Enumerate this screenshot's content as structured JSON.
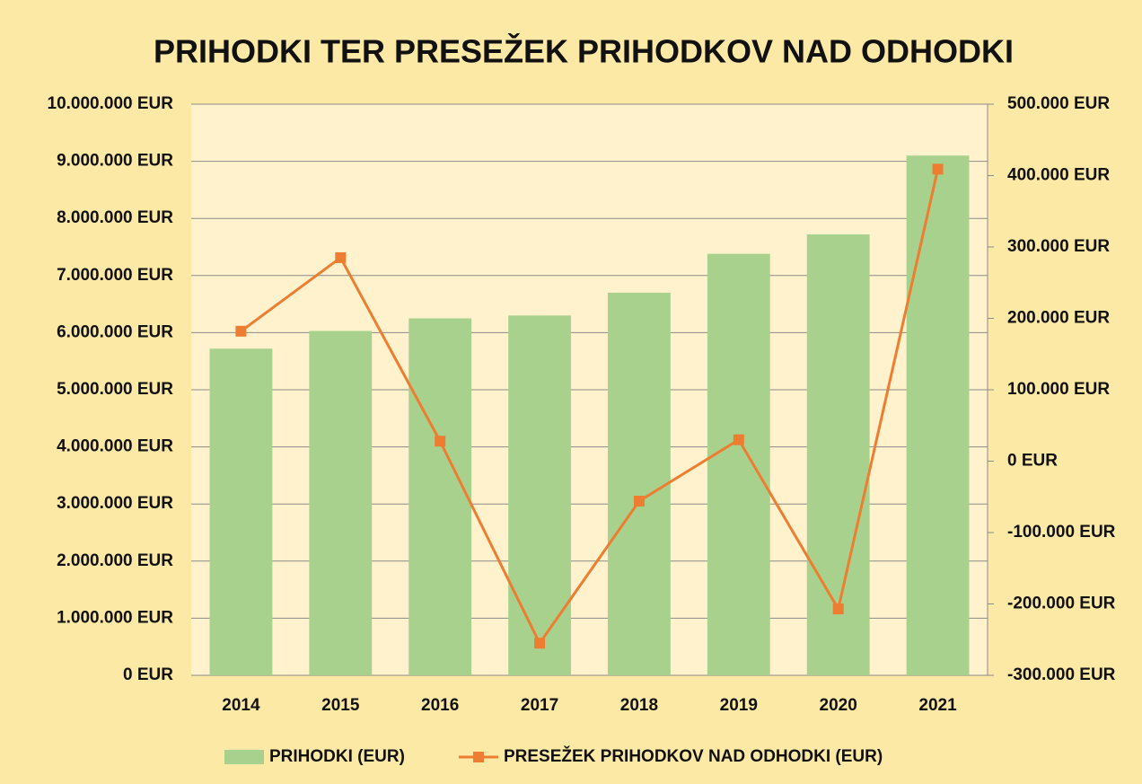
{
  "chart_data": {
    "type": "bar",
    "title": "PRIHODKI TER PRESEŽEK PRIHODKOV NAD ODHODKI",
    "categories": [
      "2014",
      "2015",
      "2016",
      "2017",
      "2018",
      "2019",
      "2020",
      "2021"
    ],
    "series": [
      {
        "name": "PRIHODKI (EUR)",
        "type": "bar",
        "color": "#a9d18e",
        "values": [
          5720000,
          6030000,
          6250000,
          6300000,
          6700000,
          7380000,
          7720000,
          9100000
        ]
      },
      {
        "name": "PRESEŽEK PRIHODKOV NAD ODHODKI (EUR)",
        "type": "line",
        "axis": "y2",
        "color": "#ed7d31",
        "values": [
          182000,
          285000,
          28000,
          -255000,
          -56000,
          30000,
          -207000,
          409000
        ]
      }
    ],
    "ylim": [
      0,
      10000000
    ],
    "yticks": [
      {
        "value": 0,
        "label": "0 EUR"
      },
      {
        "value": 1000000,
        "label": "1.000.000 EUR"
      },
      {
        "value": 2000000,
        "label": "2.000.000 EUR"
      },
      {
        "value": 3000000,
        "label": "3.000.000 EUR"
      },
      {
        "value": 4000000,
        "label": "4.000.000 EUR"
      },
      {
        "value": 5000000,
        "label": "5.000.000 EUR"
      },
      {
        "value": 6000000,
        "label": "6.000.000 EUR"
      },
      {
        "value": 7000000,
        "label": "7.000.000 EUR"
      },
      {
        "value": 8000000,
        "label": "8.000.000 EUR"
      },
      {
        "value": 9000000,
        "label": "9.000.000 EUR"
      },
      {
        "value": 10000000,
        "label": "10.000.000 EUR"
      }
    ],
    "y2lim": [
      -300000,
      500000
    ],
    "y2ticks": [
      {
        "value": -300000,
        "label": "-300.000 EUR"
      },
      {
        "value": -200000,
        "label": "-200.000 EUR"
      },
      {
        "value": -100000,
        "label": "-100.000 EUR"
      },
      {
        "value": 0,
        "label": "0 EUR"
      },
      {
        "value": 100000,
        "label": "100.000 EUR"
      },
      {
        "value": 200000,
        "label": "200.000 EUR"
      },
      {
        "value": 300000,
        "label": "300.000 EUR"
      },
      {
        "value": 400000,
        "label": "400.000 EUR"
      },
      {
        "value": 500000,
        "label": "500.000 EUR"
      }
    ],
    "grid": true,
    "legend": "bottom"
  }
}
